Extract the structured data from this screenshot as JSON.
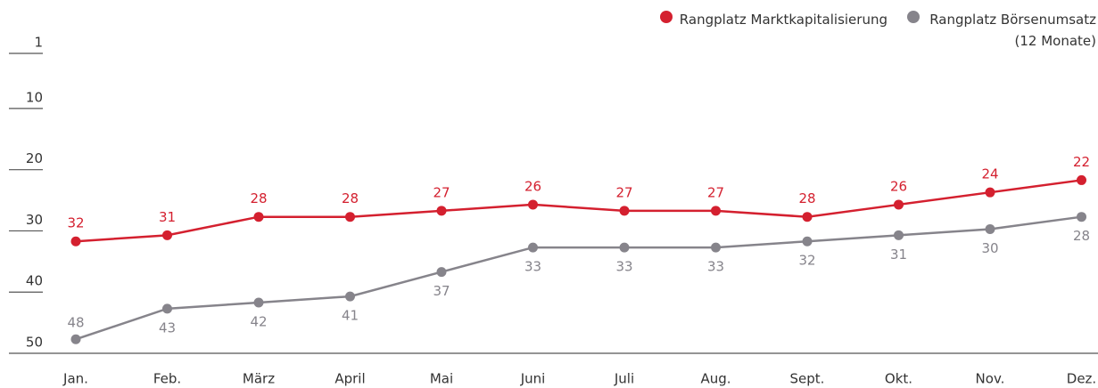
{
  "chart_data": {
    "type": "line",
    "categories": [
      "Jan.",
      "Feb.",
      "März",
      "April",
      "Mai",
      "Juni",
      "Juli",
      "Aug.",
      "Sept.",
      "Okt.",
      "Nov.",
      "Dez."
    ],
    "series": [
      {
        "name": "Rangplatz Marktkapitalisierung",
        "color": "#d4202f",
        "values": [
          32,
          31,
          28,
          28,
          27,
          26,
          27,
          27,
          28,
          26,
          24,
          22
        ]
      },
      {
        "name": "Rangplatz Börsenumsatz (12 Monate)",
        "color": "#86848b",
        "values": [
          48,
          43,
          42,
          41,
          37,
          33,
          33,
          33,
          32,
          31,
          30,
          28
        ]
      }
    ],
    "ylim": [
      50,
      1
    ],
    "yticks": [
      1,
      10,
      20,
      30,
      40,
      50
    ],
    "legend": "top-right"
  }
}
